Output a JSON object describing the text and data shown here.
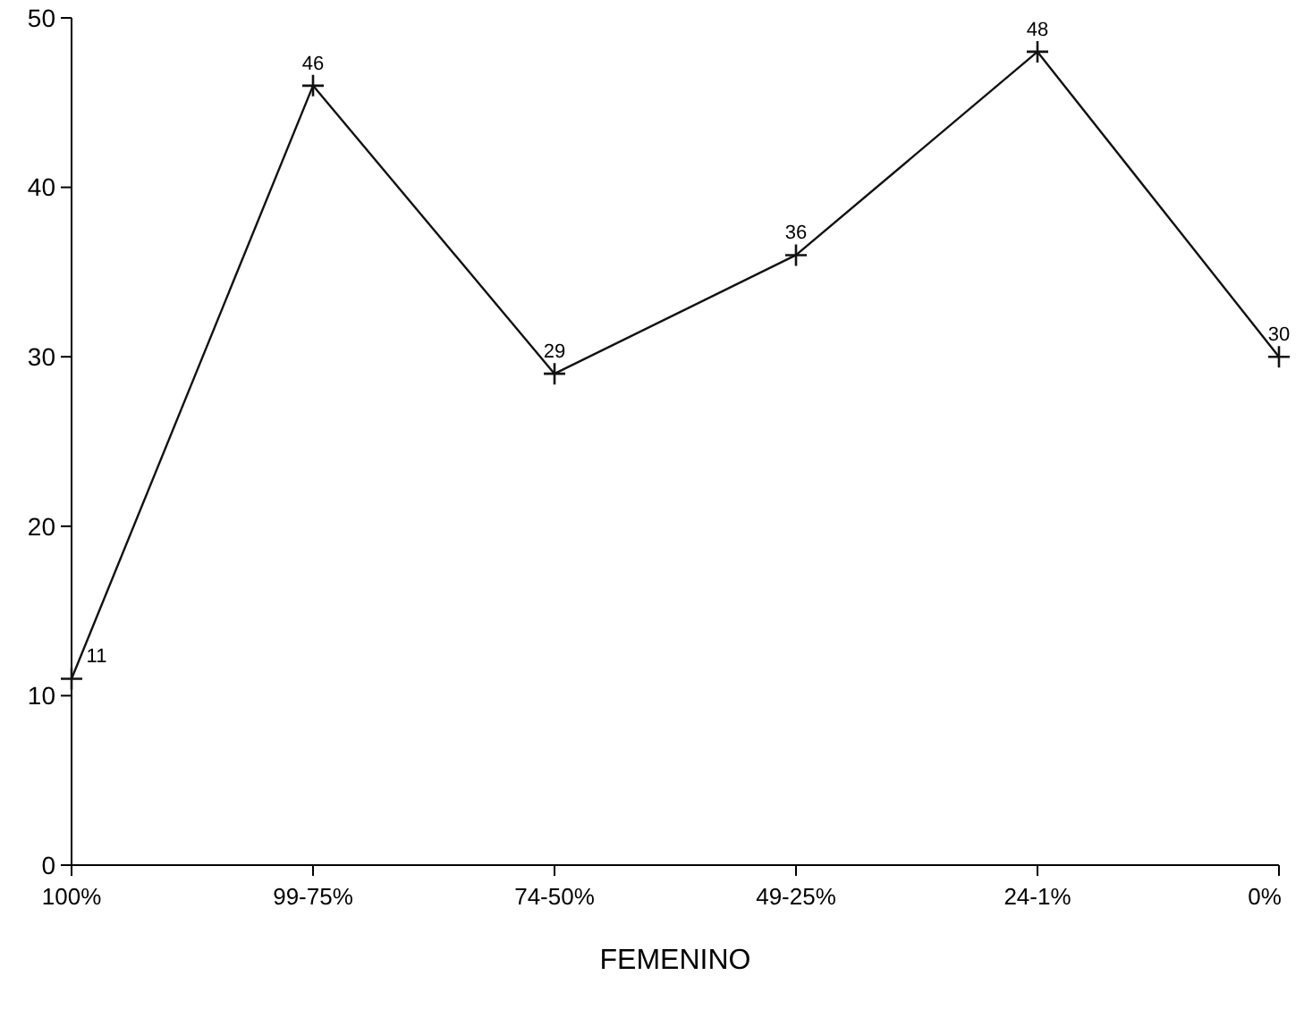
{
  "chart_data": {
    "type": "line",
    "xlabel": "FEMENINO",
    "categories": [
      "100%",
      "99-75%",
      "74-50%",
      "49-25%",
      "24-1%",
      "0%"
    ],
    "values": [
      11,
      46,
      29,
      36,
      48,
      30
    ],
    "color": "#111111",
    "ylim": [
      0,
      50
    ],
    "yticks": [
      0,
      10,
      20,
      30,
      40,
      50
    ],
    "marker": "cross",
    "data_labels": true,
    "grid": false
  }
}
